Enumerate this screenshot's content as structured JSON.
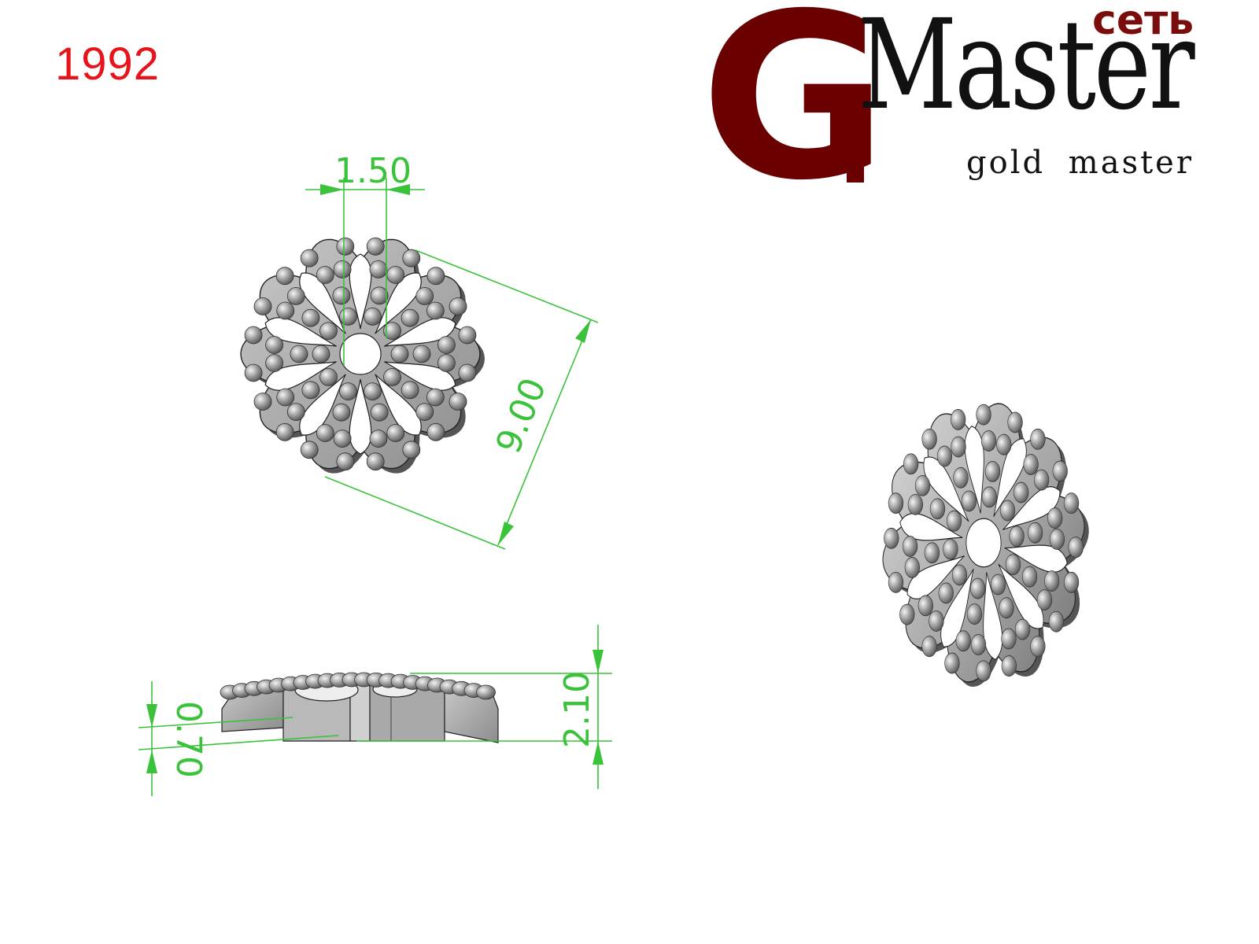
{
  "product": {
    "code": "1992"
  },
  "logo": {
    "letter": "G",
    "word": "Master",
    "badge": "сеть",
    "tagline": "gold master"
  },
  "dimensions": {
    "petal_width": "1.50",
    "diameter": "9.00",
    "height": "2.10",
    "thickness": "0.70"
  },
  "colors": {
    "dimension": "#3bc23b",
    "code": "#e8141b",
    "brand": "#6b0000",
    "metal": "#a8a8a8"
  }
}
